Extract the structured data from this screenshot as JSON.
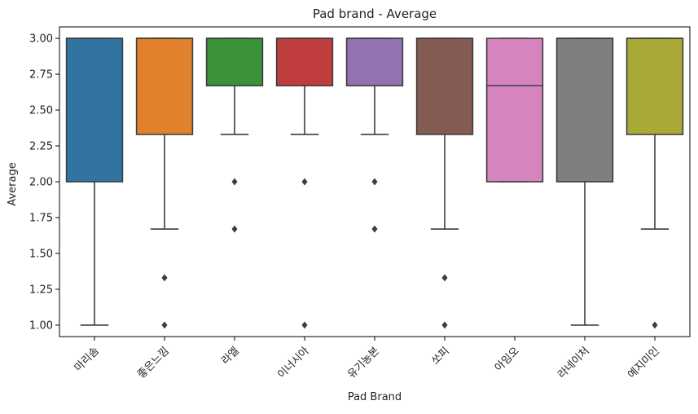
{
  "chart_data": {
    "type": "box",
    "title": "Pad brand -  Average",
    "xlabel": "Pad Brand",
    "ylabel": "Average",
    "ylim": [
      0.92,
      3.08
    ],
    "yticks": [
      "1.00",
      "1.25",
      "1.50",
      "1.75",
      "2.00",
      "2.25",
      "2.50",
      "2.75",
      "3.00"
    ],
    "ytick_values": [
      1.0,
      1.25,
      1.5,
      1.75,
      2.0,
      2.25,
      2.5,
      2.75,
      3.0
    ],
    "grid": false,
    "categories": [
      "마리솜",
      "좋은느낌",
      "라엘",
      "이너시아",
      "유기농본",
      "쏘피",
      "아임오",
      "라네이처",
      "예지미인"
    ],
    "boxes": [
      {
        "category": "마리솜",
        "whislo": 1.0,
        "q1": 2.0,
        "med": 3.0,
        "q3": 3.0,
        "whishi": 3.0,
        "fliers": [],
        "color": "#3274a1"
      },
      {
        "category": "좋은느낌",
        "whislo": 1.67,
        "q1": 2.33,
        "med": 3.0,
        "q3": 3.0,
        "whishi": 3.0,
        "fliers": [
          1.33,
          1.0
        ],
        "color": "#e1812c"
      },
      {
        "category": "라엘",
        "whislo": 2.33,
        "q1": 2.67,
        "med": 3.0,
        "q3": 3.0,
        "whishi": 3.0,
        "fliers": [
          2.0,
          1.67
        ],
        "color": "#3a923a"
      },
      {
        "category": "이너시아",
        "whislo": 2.33,
        "q1": 2.67,
        "med": 3.0,
        "q3": 3.0,
        "whishi": 3.0,
        "fliers": [
          2.0,
          1.0
        ],
        "color": "#c03d3e"
      },
      {
        "category": "유기농본",
        "whislo": 2.33,
        "q1": 2.67,
        "med": 3.0,
        "q3": 3.0,
        "whishi": 3.0,
        "fliers": [
          2.0,
          1.67
        ],
        "color": "#9372b2"
      },
      {
        "category": "쏘피",
        "whislo": 1.67,
        "q1": 2.33,
        "med": 3.0,
        "q3": 3.0,
        "whishi": 3.0,
        "fliers": [
          1.33,
          1.0
        ],
        "color": "#845b53"
      },
      {
        "category": "아임오",
        "whislo": 2.0,
        "q1": 2.0,
        "med": 2.67,
        "q3": 3.0,
        "whishi": 3.0,
        "fliers": [],
        "color": "#d684bd"
      },
      {
        "category": "라네이처",
        "whislo": 1.0,
        "q1": 2.0,
        "med": 3.0,
        "q3": 3.0,
        "whishi": 3.0,
        "fliers": [],
        "color": "#7f7f7f"
      },
      {
        "category": "예지미인",
        "whislo": 1.67,
        "q1": 2.33,
        "med": 3.0,
        "q3": 3.0,
        "whishi": 3.0,
        "fliers": [
          1.0
        ],
        "color": "#a9aa35"
      }
    ]
  }
}
